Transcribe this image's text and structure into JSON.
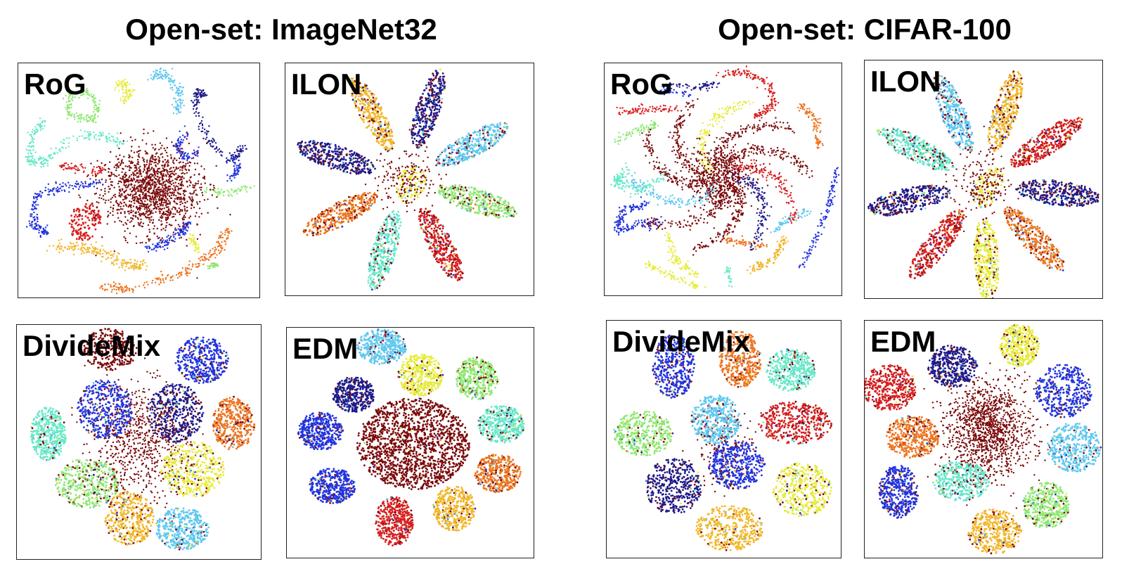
{
  "groups": [
    {
      "title": "Open-set: ImageNet32"
    },
    {
      "title": "Open-set: CIFAR-100"
    }
  ],
  "chart_data": [
    {
      "type": "scatter",
      "group": "Open-set: ImageNet32",
      "title": "RoG",
      "layout": "ring-with-curves"
    },
    {
      "type": "scatter",
      "group": "Open-set: ImageNet32",
      "title": "ILON",
      "layout": "petals"
    },
    {
      "type": "scatter",
      "group": "Open-set: CIFAR-100",
      "title": "RoG",
      "layout": "ring-with-curves"
    },
    {
      "type": "scatter",
      "group": "Open-set: CIFAR-100",
      "title": "ILON",
      "layout": "petals"
    },
    {
      "type": "scatter",
      "group": "Open-set: ImageNet32",
      "title": "DivideMix",
      "layout": "clusters"
    },
    {
      "type": "scatter",
      "group": "Open-set: ImageNet32",
      "title": "EDM",
      "layout": "clusters"
    },
    {
      "type": "scatter",
      "group": "Open-set: CIFAR-100",
      "title": "DivideMix",
      "layout": "clusters"
    },
    {
      "type": "scatter",
      "group": "Open-set: CIFAR-100",
      "title": "EDM",
      "layout": "clusters"
    }
  ],
  "colors": {
    "open_set": "#7b0a0a",
    "classes": [
      "#1e1a8c",
      "#2233dd",
      "#3b8fe6",
      "#5fc8f0",
      "#66e8c8",
      "#8ee870",
      "#e6ec3a",
      "#f2b62a",
      "#ec7420",
      "#d81e1e"
    ]
  }
}
